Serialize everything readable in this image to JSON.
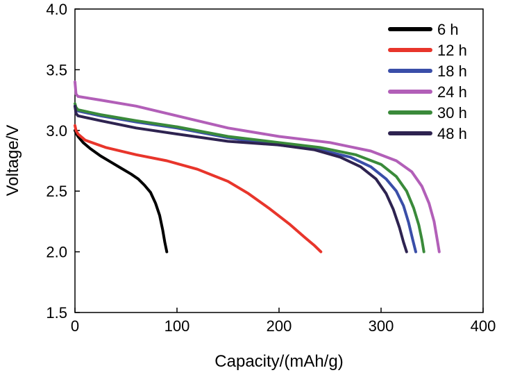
{
  "chart_data": {
    "type": "line",
    "title": "",
    "xlabel": "Capacity/(mAh/g)",
    "ylabel": "Voltage/V",
    "xlim": [
      0,
      400
    ],
    "ylim": [
      1.5,
      4.0
    ],
    "xticks": [
      0,
      100,
      200,
      300,
      400
    ],
    "yticks": [
      1.5,
      2.0,
      2.5,
      3.0,
      3.5,
      4.0
    ],
    "xtick_labels": [
      "0",
      "100",
      "200",
      "300",
      "400"
    ],
    "ytick_labels": [
      "1.5",
      "2.0",
      "2.5",
      "3.0",
      "3.5",
      "4.0"
    ],
    "grid": false,
    "legend_position": "top-right",
    "series": [
      {
        "name": "6 h",
        "color": "#000000",
        "x": [
          0,
          1,
          3,
          8,
          15,
          25,
          35,
          45,
          55,
          62,
          68,
          74,
          79,
          83,
          86,
          88,
          90
        ],
        "y": [
          3.0,
          2.98,
          2.95,
          2.9,
          2.85,
          2.79,
          2.74,
          2.69,
          2.64,
          2.6,
          2.55,
          2.49,
          2.4,
          2.3,
          2.18,
          2.08,
          2.0
        ]
      },
      {
        "name": "12 h",
        "color": "#e8352b",
        "x": [
          0,
          1,
          3,
          10,
          30,
          60,
          90,
          120,
          150,
          170,
          190,
          210,
          225,
          235,
          241
        ],
        "y": [
          3.04,
          3.0,
          2.97,
          2.92,
          2.86,
          2.8,
          2.75,
          2.68,
          2.58,
          2.48,
          2.36,
          2.23,
          2.12,
          2.05,
          2.0
        ]
      },
      {
        "name": "18 h",
        "color": "#3a4ea8",
        "x": [
          0,
          1,
          3,
          25,
          60,
          100,
          150,
          200,
          240,
          270,
          290,
          305,
          315,
          322,
          327,
          331,
          334
        ],
        "y": [
          3.2,
          3.17,
          3.16,
          3.12,
          3.07,
          3.02,
          2.94,
          2.88,
          2.84,
          2.78,
          2.7,
          2.6,
          2.5,
          2.38,
          2.24,
          2.1,
          2.0
        ]
      },
      {
        "name": "24 h",
        "color": "#b25fb8",
        "x": [
          0,
          1,
          3,
          25,
          60,
          100,
          150,
          200,
          250,
          290,
          315,
          330,
          340,
          347,
          352,
          355,
          357
        ],
        "y": [
          3.4,
          3.3,
          3.28,
          3.25,
          3.2,
          3.12,
          3.02,
          2.95,
          2.9,
          2.83,
          2.75,
          2.66,
          2.54,
          2.4,
          2.25,
          2.1,
          2.0
        ]
      },
      {
        "name": "30 h",
        "color": "#3a8a3a",
        "x": [
          0,
          1,
          3,
          25,
          60,
          100,
          150,
          200,
          240,
          275,
          300,
          315,
          325,
          332,
          337,
          340,
          342
        ],
        "y": [
          3.22,
          3.19,
          3.17,
          3.13,
          3.08,
          3.03,
          2.95,
          2.9,
          2.86,
          2.8,
          2.72,
          2.62,
          2.5,
          2.36,
          2.22,
          2.1,
          2.0
        ]
      },
      {
        "name": "48 h",
        "color": "#2e2350",
        "x": [
          0,
          1,
          3,
          25,
          60,
          100,
          150,
          200,
          235,
          260,
          280,
          295,
          305,
          312,
          318,
          322,
          325
        ],
        "y": [
          3.2,
          3.14,
          3.12,
          3.08,
          3.02,
          2.97,
          2.91,
          2.88,
          2.84,
          2.78,
          2.7,
          2.6,
          2.48,
          2.35,
          2.2,
          2.08,
          2.0
        ]
      }
    ]
  }
}
